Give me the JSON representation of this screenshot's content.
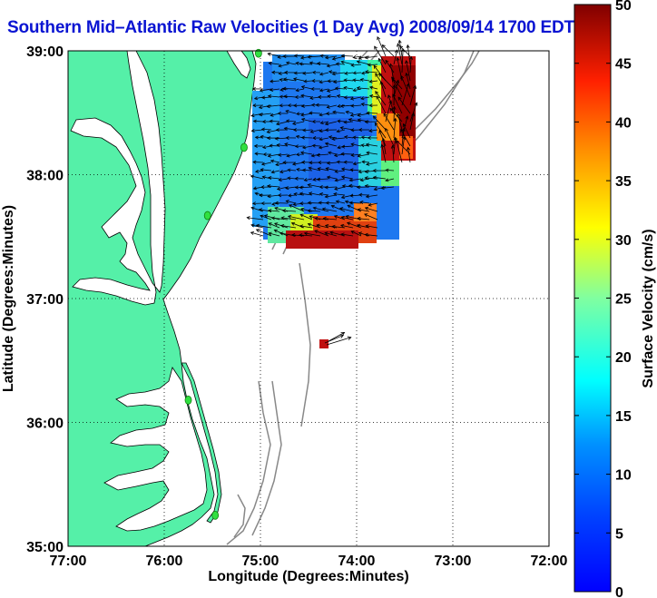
{
  "title": "Southern Mid–Atlantic Raw Velocities (1 Day Avg) 2008/09/14 1700 EDT",
  "map": {
    "xlabel": "Longitude (Degrees:Minutes)",
    "ylabel": "Latitude (Degrees:Minutes)",
    "lon_ticks": [
      "77:00",
      "76:00",
      "75:00",
      "74:00",
      "73:00",
      "72:00"
    ],
    "lat_ticks": [
      "39:00",
      "38:00",
      "37:00",
      "36:00",
      "35:00"
    ],
    "lon_range": [
      -77,
      -72
    ],
    "lat_range": [
      35,
      39
    ],
    "land_color": "#55f0a8",
    "ocean_color": "#ffffff",
    "grid": "dotted"
  },
  "colorbar": {
    "label": "Surface Velocity (cm/s)",
    "ticks": [
      "0",
      "5",
      "10",
      "15",
      "20",
      "25",
      "30",
      "35",
      "40",
      "45",
      "50"
    ],
    "range": [
      0,
      50
    ],
    "colormap": "jet"
  },
  "stations": [
    {
      "lon": -75.02,
      "lat": 38.98
    },
    {
      "lon": -75.17,
      "lat": 38.22
    },
    {
      "lon": -75.55,
      "lat": 37.67
    },
    {
      "lon": -75.75,
      "lat": 36.18
    },
    {
      "lon": -75.47,
      "lat": 35.25
    }
  ]
}
